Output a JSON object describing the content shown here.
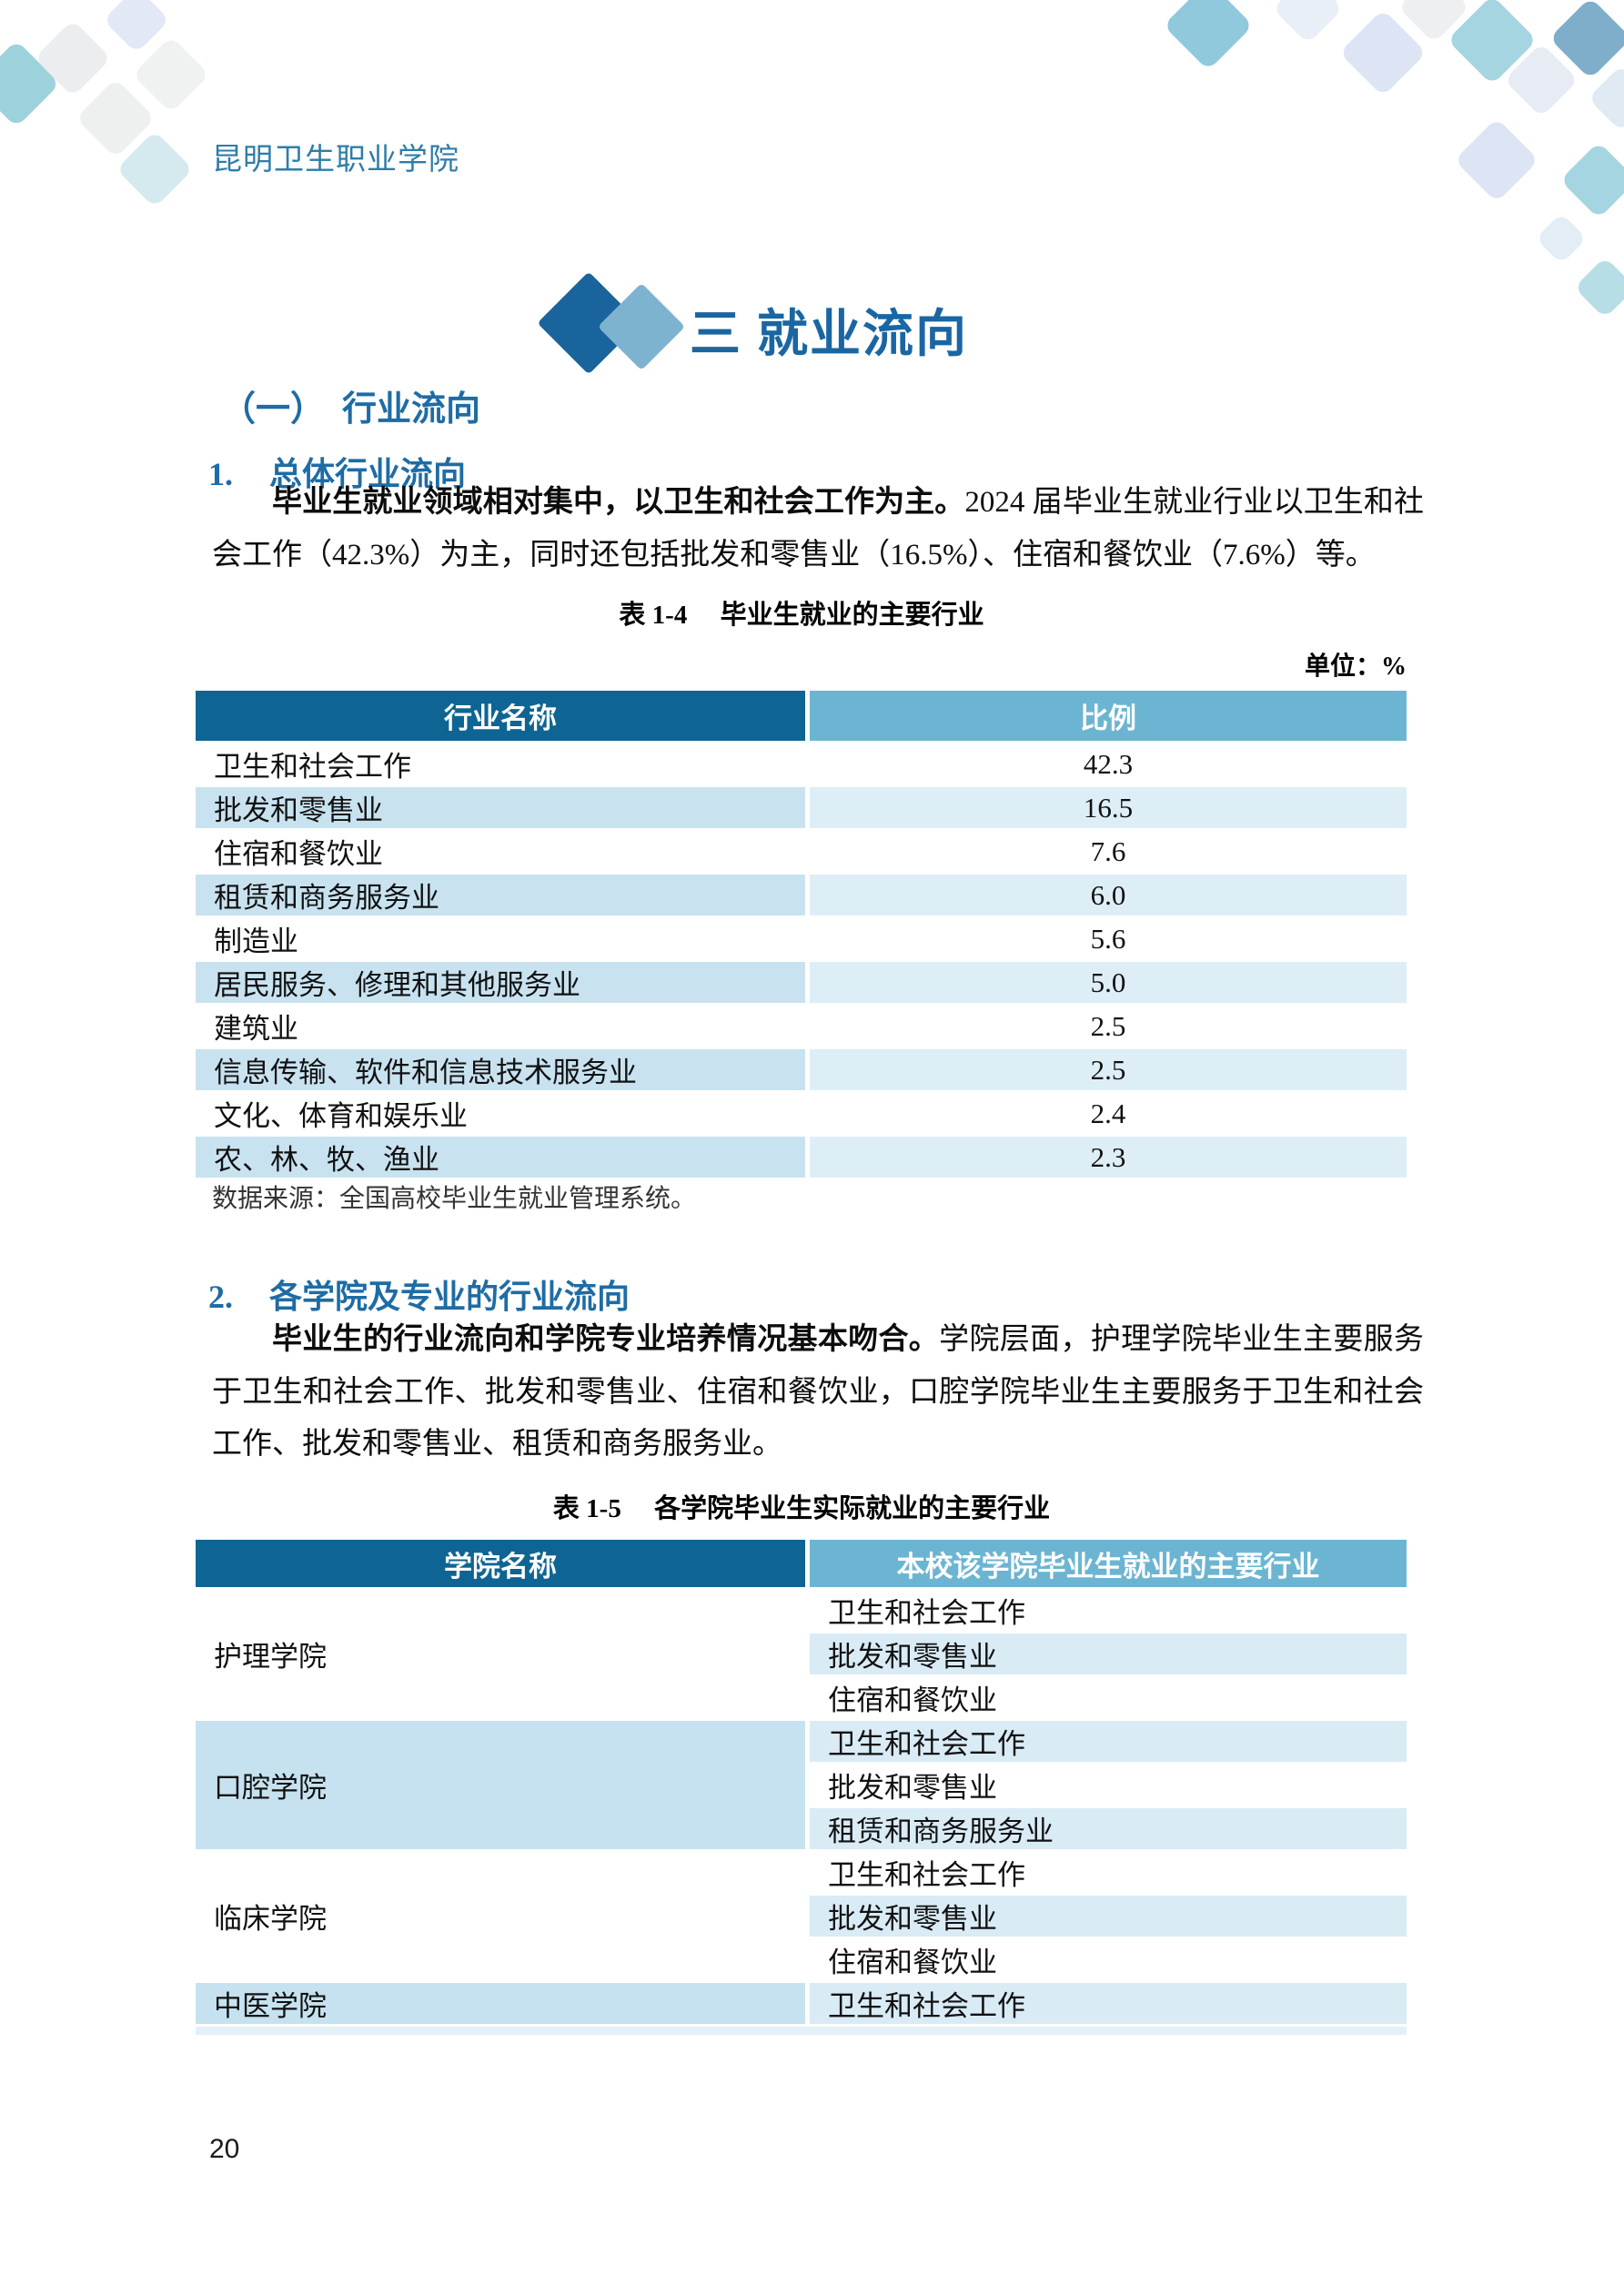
{
  "page": {
    "header": "昆明卫生职业学院",
    "page_number": "20"
  },
  "chapter": {
    "title": "三 就业流向"
  },
  "section1": {
    "heading": "（一）　行业流向",
    "sub1": {
      "num": "1.",
      "label": "总体行业流向"
    },
    "paragraph1": {
      "bold": "毕业生就业领域相对集中，以卫生和社会工作为主。",
      "rest": "2024 届毕业生就业行业以卫生和社会工作（42.3%）为主，同时还包括批发和零售业（16.5%）、住宿和餐饮业（7.6%）等。"
    },
    "table14": {
      "caption": "表 1-4　 毕业生就业的主要行业",
      "unit": "单位：%",
      "columns": [
        "行业名称",
        "比例"
      ],
      "rows": [
        [
          "卫生和社会工作",
          "42.3"
        ],
        [
          "批发和零售业",
          "16.5"
        ],
        [
          "住宿和餐饮业",
          "7.6"
        ],
        [
          "租赁和商务服务业",
          "6.0"
        ],
        [
          "制造业",
          "5.6"
        ],
        [
          "居民服务、修理和其他服务业",
          "5.0"
        ],
        [
          "建筑业",
          "2.5"
        ],
        [
          "信息传输、软件和信息技术服务业",
          "2.5"
        ],
        [
          "文化、体育和娱乐业",
          "2.4"
        ],
        [
          "农、林、牧、渔业",
          "2.3"
        ]
      ],
      "source": "数据来源：全国高校毕业生就业管理系统。"
    },
    "sub2": {
      "num": "2.",
      "label": "各学院及专业的行业流向"
    },
    "paragraph2": {
      "bold": "毕业生的行业流向和学院专业培养情况基本吻合。",
      "rest": "学院层面，护理学院毕业生主要服务于卫生和社会工作、批发和零售业、住宿和餐饮业，口腔学院毕业生主要服务于卫生和社会工作、批发和零售业、租赁和商务服务业。"
    },
    "table15": {
      "caption": "表 1-5　 各学院毕业生实际就业的主要行业",
      "columns": [
        "学院名称",
        "本校该学院毕业生就业的主要行业"
      ],
      "groups": [
        {
          "college": "护理学院",
          "industries": [
            "卫生和社会工作",
            "批发和零售业",
            "住宿和餐饮业"
          ]
        },
        {
          "college": "口腔学院",
          "industries": [
            "卫生和社会工作",
            "批发和零售业",
            "租赁和商务服务业"
          ]
        },
        {
          "college": "临床学院",
          "industries": [
            "卫生和社会工作",
            "批发和零售业",
            "住宿和餐饮业"
          ]
        },
        {
          "college": "中医学院",
          "industries": [
            "卫生和社会工作"
          ]
        }
      ]
    }
  },
  "colors": {
    "header_dark_blue": "#0E6593",
    "header_light_blue": "#6CB5D2",
    "stripe_col1": "#C8E2F0",
    "stripe_col2": "#DEEEF6",
    "t15_stripe_col1": "#C6E2F0",
    "t15_stripe_col2": "#D9EBF5",
    "heading_blue": "#1E6CA5",
    "title_blue": "#1A66A2",
    "brand_text_blue": "#2E7DAA",
    "logo_dark_diamond": "#19649C",
    "logo_light_diamond": "#7EB3D0"
  }
}
